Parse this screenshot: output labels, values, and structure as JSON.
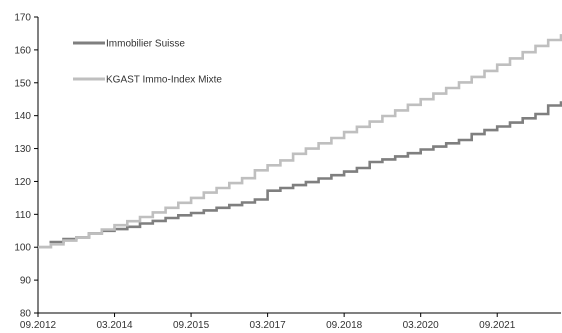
{
  "chart_data": {
    "type": "line",
    "title": "",
    "xlabel": "",
    "ylabel": "",
    "ylim": [
      80,
      170
    ],
    "yticks": [
      80,
      90,
      100,
      110,
      120,
      130,
      140,
      150,
      160,
      170
    ],
    "xlim": [
      "2012-09",
      "2022-12"
    ],
    "xticks": [
      "09.2012",
      "03.2014",
      "09.2015",
      "03.2017",
      "09.2018",
      "03.2020",
      "09.2021"
    ],
    "grid": false,
    "legend_position": "top-left",
    "step": true,
    "series": [
      {
        "name": "Immobilier Suisse",
        "color": "#7f7f7f",
        "points": [
          [
            "2012-09",
            100.0
          ],
          [
            "2012-12",
            101.6
          ],
          [
            "2013-03",
            102.5
          ],
          [
            "2013-06",
            103.0
          ],
          [
            "2013-09",
            104.2
          ],
          [
            "2013-12",
            105.0
          ],
          [
            "2014-03",
            105.5
          ],
          [
            "2014-06",
            106.2
          ],
          [
            "2014-09",
            107.2
          ],
          [
            "2014-12",
            108.0
          ],
          [
            "2015-03",
            108.9
          ],
          [
            "2015-06",
            109.7
          ],
          [
            "2015-09",
            110.4
          ],
          [
            "2015-12",
            111.2
          ],
          [
            "2016-03",
            112.0
          ],
          [
            "2016-06",
            112.8
          ],
          [
            "2016-09",
            113.6
          ],
          [
            "2016-12",
            114.5
          ],
          [
            "2017-03",
            117.2
          ],
          [
            "2017-06",
            118.0
          ],
          [
            "2017-09",
            118.9
          ],
          [
            "2017-12",
            119.8
          ],
          [
            "2018-03",
            120.9
          ],
          [
            "2018-06",
            121.9
          ],
          [
            "2018-09",
            123.0
          ],
          [
            "2018-12",
            124.1
          ],
          [
            "2019-03",
            125.9
          ],
          [
            "2019-06",
            126.7
          ],
          [
            "2019-09",
            127.6
          ],
          [
            "2019-12",
            128.6
          ],
          [
            "2020-03",
            129.7
          ],
          [
            "2020-06",
            130.6
          ],
          [
            "2020-09",
            131.6
          ],
          [
            "2020-12",
            132.6
          ],
          [
            "2021-03",
            134.4
          ],
          [
            "2021-06",
            135.6
          ],
          [
            "2021-09",
            136.7
          ],
          [
            "2021-12",
            137.9
          ],
          [
            "2022-03",
            139.2
          ],
          [
            "2022-06",
            140.5
          ],
          [
            "2022-09",
            143.1
          ],
          [
            "2022-12",
            144.4
          ]
        ]
      },
      {
        "name": "KGAST Immo-Index Mixte",
        "color": "#bfbfbf",
        "points": [
          [
            "2012-09",
            100.0
          ],
          [
            "2012-12",
            100.9
          ],
          [
            "2013-03",
            102.0
          ],
          [
            "2013-06",
            103.0
          ],
          [
            "2013-09",
            104.2
          ],
          [
            "2013-12",
            105.4
          ],
          [
            "2014-03",
            106.7
          ],
          [
            "2014-06",
            107.9
          ],
          [
            "2014-09",
            109.2
          ],
          [
            "2014-12",
            110.6
          ],
          [
            "2015-03",
            112.0
          ],
          [
            "2015-06",
            113.5
          ],
          [
            "2015-09",
            115.0
          ],
          [
            "2015-12",
            116.6
          ],
          [
            "2016-03",
            118.0
          ],
          [
            "2016-06",
            119.5
          ],
          [
            "2016-09",
            121.0
          ],
          [
            "2016-12",
            123.4
          ],
          [
            "2017-03",
            124.9
          ],
          [
            "2017-06",
            126.4
          ],
          [
            "2017-09",
            128.4
          ],
          [
            "2017-12",
            130.0
          ],
          [
            "2018-03",
            131.6
          ],
          [
            "2018-06",
            133.2
          ],
          [
            "2018-09",
            135.0
          ],
          [
            "2018-12",
            136.6
          ],
          [
            "2019-03",
            138.2
          ],
          [
            "2019-06",
            139.9
          ],
          [
            "2019-09",
            141.6
          ],
          [
            "2019-12",
            143.3
          ],
          [
            "2020-03",
            145.0
          ],
          [
            "2020-06",
            146.7
          ],
          [
            "2020-09",
            148.4
          ],
          [
            "2020-12",
            150.1
          ],
          [
            "2021-03",
            151.8
          ],
          [
            "2021-06",
            153.6
          ],
          [
            "2021-09",
            155.5
          ],
          [
            "2021-12",
            157.4
          ],
          [
            "2022-03",
            159.3
          ],
          [
            "2022-06",
            161.2
          ],
          [
            "2022-09",
            163.0
          ],
          [
            "2022-12",
            164.8
          ]
        ]
      }
    ]
  }
}
